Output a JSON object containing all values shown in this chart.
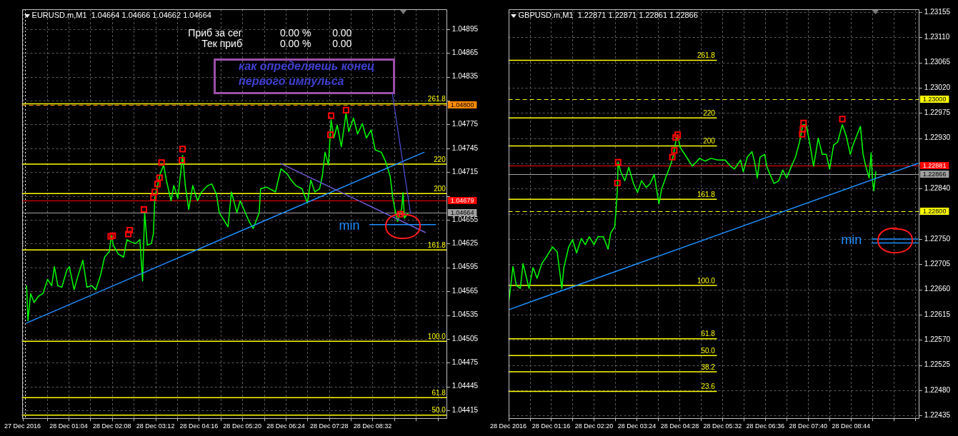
{
  "chart_data": [
    {
      "type": "line",
      "title": "EURUSD.m,M1  1.04664 1.04666 1.04662 1.04664",
      "annotations": [
        "Приб за сег",
        "0.00 %",
        "0.00",
        "Тек приб",
        "0.00 %",
        "0.00",
        "как определяешь конец первого импульса"
      ],
      "xlim": [
        "2016-12-27T23:55",
        "2016-12-28T10:22"
      ],
      "xticks": [
        {
          "value": "2016-12-27T23:56",
          "label": "27 Dec 2016"
        },
        {
          "value": "2016-12-28T00:32",
          "label": null
        },
        {
          "value": "2016-12-28T01:04",
          "label": "28 Dec 01:04"
        },
        {
          "value": "2016-12-28T01:36",
          "label": null
        },
        {
          "value": "2016-12-28T02:08",
          "label": "28 Dec 02:08"
        },
        {
          "value": "2016-12-28T02:40",
          "label": null
        },
        {
          "value": "2016-12-28T03:12",
          "label": "28 Dec 03:12"
        },
        {
          "value": "2016-12-28T03:44",
          "label": null
        },
        {
          "value": "2016-12-28T04:16",
          "label": "28 Dec 04:16"
        },
        {
          "value": "2016-12-28T04:48",
          "label": null
        },
        {
          "value": "2016-12-28T05:20",
          "label": "28 Dec 05:20"
        },
        {
          "value": "2016-12-28T05:52",
          "label": null
        },
        {
          "value": "2016-12-28T06:24",
          "label": "28 Dec 06:24"
        },
        {
          "value": "2016-12-28T06:56",
          "label": null
        },
        {
          "value": "2016-12-28T07:28",
          "label": "28 Dec 07:28"
        },
        {
          "value": "2016-12-28T08:00",
          "label": null
        },
        {
          "value": "2016-12-28T08:32",
          "label": "28 Dec 08:32"
        },
        {
          "value": "2016-12-28T09:04",
          "label": null
        },
        {
          "value": "2016-12-28T09:36",
          "label": null
        },
        {
          "value": "2016-12-28T10:08",
          "label": null
        }
      ],
      "ylim": [
        1.04405,
        1.0492
      ],
      "yticks": [
        1.04415,
        1.04445,
        1.04475,
        1.04505,
        1.04535,
        1.04565,
        1.04595,
        1.04625,
        1.04655,
        {
          "value": 1.04685,
          "label": null
        },
        1.04715,
        1.04745,
        1.04775,
        {
          "value": 1.04805,
          "label": null
        },
        1.04835,
        1.04865,
        1.04895
      ],
      "grid": true,
      "ref_lines": [
        {
          "axis": "x",
          "value": "2016-12-28T00:00",
          "color": "#ffffff",
          "line_style": "dotted"
        },
        {
          "axis": "y",
          "value": 1.048,
          "label": "1.04800",
          "color": "#ff8c00",
          "line_style": "dashed"
        },
        {
          "axis": "y",
          "value": 1.04679,
          "label": "1.04679",
          "color": "#ff0000"
        },
        {
          "axis": "y",
          "value": 1.04664,
          "label": "1.04664",
          "color": "#a0a0a0"
        }
      ],
      "series": [
        {
          "name": "261.8",
          "color": "#ffff00",
          "x": [
            "2016-12-27T23:55",
            "2016-12-28T10:22"
          ],
          "values": [
            1.04801,
            1.04801
          ]
        },
        {
          "name": "220",
          "color": "#ffff00",
          "x": [
            "2016-12-27T23:55",
            "2016-12-28T10:22"
          ],
          "values": [
            1.04725,
            1.04725
          ]
        },
        {
          "name": "200",
          "color": "#ffff00",
          "x": [
            "2016-12-27T23:55",
            "2016-12-28T10:22"
          ],
          "values": [
            1.04688,
            1.04688
          ]
        },
        {
          "name": "161.8",
          "color": "#ffff00",
          "x": [
            "2016-12-27T23:55",
            "2016-12-28T10:22"
          ],
          "values": [
            1.04617,
            1.04617
          ]
        },
        {
          "name": "100.0",
          "color": "#ffff00",
          "x": [
            "2016-12-27T23:55",
            "2016-12-28T10:22"
          ],
          "values": [
            1.04502,
            1.04502
          ]
        },
        {
          "name": "61.8",
          "color": "#ffff00",
          "x": [
            "2016-12-27T23:55",
            "2016-12-28T10:22"
          ],
          "values": [
            1.04431,
            1.04431
          ]
        },
        {
          "name": "50.0",
          "color": "#ffff00",
          "x": [
            "2016-12-27T23:55",
            "2016-12-28T10:22"
          ],
          "values": [
            1.04409,
            1.04409
          ]
        },
        {
          "color": "#00ff00",
          "x": [
            "2016-12-28T00:02",
            "2016-12-28T00:04",
            "2016-12-28T00:08",
            "2016-12-28T00:13",
            "2016-12-28T00:20",
            "2016-12-28T00:26",
            "2016-12-28T00:33",
            "2016-12-28T00:39",
            "2016-12-28T00:43",
            "2016-12-28T00:48",
            "2016-12-28T00:54",
            "2016-12-28T01:01",
            "2016-12-28T01:05",
            "2016-12-28T01:12",
            "2016-12-28T01:18",
            "2016-12-28T01:25",
            "2016-12-28T01:31",
            "2016-12-28T01:38",
            "2016-12-28T01:44",
            "2016-12-28T01:51",
            "2016-12-28T01:57",
            "2016-12-28T02:04",
            "2016-12-28T02:07",
            "2016-12-28T02:10",
            "2016-12-28T02:17",
            "2016-12-28T02:25",
            "2016-12-28T02:30",
            "2016-12-28T02:36",
            "2016-12-28T02:43",
            "2016-12-28T02:49",
            "2016-12-28T02:53",
            "2016-12-28T02:56",
            "2016-12-28T03:00",
            "2016-12-28T03:06",
            "2016-12-28T03:09",
            "2016-12-28T03:11",
            "2016-12-28T03:19",
            "2016-12-28T03:24",
            "2016-12-28T03:28",
            "2016-12-28T03:35",
            "2016-12-28T03:39",
            "2016-12-28T03:45",
            "2016-12-28T03:52",
            "2016-12-28T03:56",
            "2016-12-28T04:01",
            "2016-12-28T04:07",
            "2016-12-28T04:14",
            "2016-12-28T04:20",
            "2016-12-28T04:29",
            "2016-12-28T04:35",
            "2016-12-28T04:42",
            "2016-12-28T04:46",
            "2016-12-28T04:59",
            "2016-12-28T05:04",
            "2016-12-28T05:12",
            "2016-12-28T05:17",
            "2016-12-28T05:30",
            "2016-12-28T05:36",
            "2016-12-28T05:45",
            "2016-12-28T05:47",
            "2016-12-28T05:56",
            "2016-12-28T06:09",
            "2016-12-28T06:13",
            "2016-12-28T06:17",
            "2016-12-28T06:26",
            "2016-12-28T06:32",
            "2016-12-28T06:39",
            "2016-12-28T06:48",
            "2016-12-28T06:56",
            "2016-12-28T07:01",
            "2016-12-28T07:07",
            "2016-12-28T07:14",
            "2016-12-28T07:18",
            "2016-12-28T07:22",
            "2016-12-28T07:27",
            "2016-12-28T07:31",
            "2016-12-28T07:35",
            "2016-12-28T07:40",
            "2016-12-28T07:46",
            "2016-12-28T07:53",
            "2016-12-28T07:57",
            "2016-12-28T08:04",
            "2016-12-28T08:10",
            "2016-12-28T08:17",
            "2016-12-28T08:23",
            "2016-12-28T08:30",
            "2016-12-28T08:36",
            "2016-12-28T08:45",
            "2016-12-28T08:51",
            "2016-12-28T08:58",
            "2016-12-28T09:02",
            "2016-12-28T09:06",
            "2016-12-28T09:09",
            "2016-12-28T09:15",
            "2016-12-28T09:17",
            "2016-12-28T09:19",
            "2016-12-28T09:24"
          ],
          "values": [
            1.04572,
            1.04528,
            1.04562,
            1.04551,
            1.04559,
            1.04562,
            1.0458,
            1.04572,
            1.04596,
            1.04572,
            1.0457,
            1.04591,
            1.04596,
            1.04567,
            1.04585,
            1.04604,
            1.0457,
            1.04572,
            1.04567,
            1.04585,
            1.04608,
            1.04615,
            1.04635,
            1.04623,
            1.04612,
            1.04608,
            1.0463,
            1.04627,
            1.04625,
            1.0463,
            1.04578,
            1.04664,
            1.04623,
            1.04625,
            1.04638,
            1.04682,
            1.04713,
            1.04724,
            1.04705,
            1.04679,
            1.04698,
            1.04682,
            1.04736,
            1.04698,
            1.04668,
            1.04698,
            1.04679,
            1.0469,
            1.04698,
            1.047,
            1.04687,
            1.04664,
            1.04646,
            1.0469,
            1.04664,
            1.04679,
            1.04653,
            1.04644,
            1.04664,
            1.04694,
            1.04696,
            1.0469,
            1.04705,
            1.04719,
            1.04713,
            1.04705,
            1.04698,
            1.04694,
            1.04676,
            1.04705,
            1.0469,
            1.04694,
            1.0471,
            1.0474,
            1.04724,
            1.04781,
            1.04758,
            1.04774,
            1.04747,
            1.04789,
            1.04766,
            1.04783,
            1.04763,
            1.04776,
            1.04758,
            1.04768,
            1.04743,
            1.0474,
            1.04729,
            1.0471,
            1.04682,
            1.04664,
            1.04653,
            1.04669,
            1.04689,
            1.04657,
            1.04663
          ]
        },
        {
          "color": "#1e90ff",
          "x": [
            "2016-12-28T00:02",
            "2016-12-28T09:48"
          ],
          "values": [
            1.04525,
            1.0474
          ]
        },
        {
          "color": "#6a5acd",
          "x": [
            "2016-12-28T06:16",
            "2016-12-28T09:50"
          ],
          "values": [
            1.04726,
            1.04639
          ]
        },
        {
          "name": "min",
          "color": "#1e90ff",
          "x": [
            "2016-12-28T08:28",
            "2016-12-28T10:05"
          ],
          "values": [
            1.04649,
            1.04649
          ]
        },
        {
          "type": "scatter",
          "marker": "square",
          "color": "#ff0000",
          "x": [
            "2016-12-28T02:06",
            "2016-12-28T02:09",
            "2016-12-28T02:32",
            "2016-12-28T02:34",
            "2016-12-28T02:55",
            "2016-12-28T03:09",
            "2016-12-28T03:11",
            "2016-12-28T03:15",
            "2016-12-28T03:18",
            "2016-12-28T03:21",
            "2016-12-28T03:51",
            "2016-12-28T03:52",
            "2016-12-28T07:30",
            "2016-12-28T07:31",
            "2016-12-28T07:53",
            "2016-12-28T09:13"
          ],
          "values": [
            1.04634,
            1.04635,
            1.04637,
            1.04642,
            1.04668,
            1.04683,
            1.0469,
            1.047,
            1.04708,
            1.04727,
            1.0473,
            1.04744,
            1.04762,
            1.04786,
            1.04793,
            1.04662
          ]
        }
      ]
    },
    {
      "type": "line",
      "title": "GBPUSD.m,M1  1.22871 1.22871 1.22861 1.22866",
      "xlim": [
        "2016-12-28T00:12",
        "2016-12-28T10:26"
      ],
      "xticks": [
        {
          "value": "2016-12-28T00:12",
          "label": "28 Dec 2016"
        },
        {
          "value": "2016-12-28T00:44",
          "label": null
        },
        {
          "value": "2016-12-28T01:16",
          "label": "28 Dec 01:16"
        },
        {
          "value": "2016-12-28T01:48",
          "label": null
        },
        {
          "value": "2016-12-28T02:20",
          "label": "28 Dec 02:20"
        },
        {
          "value": "2016-12-28T02:52",
          "label": null
        },
        {
          "value": "2016-12-28T03:24",
          "label": "28 Dec 03:24"
        },
        {
          "value": "2016-12-28T03:56",
          "label": null
        },
        {
          "value": "2016-12-28T04:28",
          "label": "28 Dec 04:28"
        },
        {
          "value": "2016-12-28T05:00",
          "label": null
        },
        {
          "value": "2016-12-28T05:32",
          "label": "28 Dec 05:32"
        },
        {
          "value": "2016-12-28T06:04",
          "label": null
        },
        {
          "value": "2016-12-28T06:36",
          "label": "28 Dec 06:36"
        },
        {
          "value": "2016-12-28T07:08",
          "label": null
        },
        {
          "value": "2016-12-28T07:40",
          "label": "28 Dec 07:40"
        },
        {
          "value": "2016-12-28T08:12",
          "label": null
        },
        {
          "value": "2016-12-28T08:44",
          "label": "28 Dec 08:44"
        },
        {
          "value": "2016-12-28T09:16",
          "label": null
        },
        {
          "value": "2016-12-28T09:48",
          "label": null
        },
        {
          "value": "2016-12-28T10:20",
          "label": null
        }
      ],
      "ylim": [
        1.2243,
        1.2316
      ],
      "yticks": [
        1.22435,
        {
          "value": 1.2248,
          "label": "1.22480"
        },
        1.22525,
        {
          "value": 1.2257,
          "label": "1.22570"
        },
        1.22615,
        {
          "value": 1.2266,
          "label": "1.22660"
        },
        1.22705,
        {
          "value": 1.2275,
          "label": "1.22750"
        },
        {
          "value": 1.22795,
          "label": null
        },
        {
          "value": 1.2284,
          "label": "1.22840"
        },
        {
          "value": 1.22885,
          "label": null
        },
        {
          "value": 1.2293,
          "label": "1.22930"
        },
        1.22975,
        {
          "value": 1.2302,
          "label": "1.23020"
        },
        1.23065,
        {
          "value": 1.2311,
          "label": "1.23110"
        },
        1.23155
      ],
      "grid": true,
      "ref_lines": [
        {
          "axis": "y",
          "value": 1.23,
          "label": "1.23000",
          "color": "#ffff00",
          "line_style": "dashed"
        },
        {
          "axis": "y",
          "value": 1.22881,
          "label": "1.22881",
          "color": "#ff0000"
        },
        {
          "axis": "y",
          "value": 1.22866,
          "label": "1.22866",
          "color": "#a0a0a0"
        },
        {
          "axis": "y",
          "value": 1.228,
          "label": "1.22800",
          "color": "#ffff00",
          "line_style": "dashed"
        }
      ],
      "series": [
        {
          "name": "261.8",
          "color": "#ffff00",
          "x": [
            "2016-12-28T00:12",
            "2016-12-28T05:23"
          ],
          "values": [
            1.23069,
            1.23069
          ]
        },
        {
          "name": "220",
          "color": "#ffff00",
          "x": [
            "2016-12-28T00:12",
            "2016-12-28T05:23"
          ],
          "values": [
            1.22966,
            1.22966
          ]
        },
        {
          "name": "200",
          "color": "#ffff00",
          "x": [
            "2016-12-28T00:12",
            "2016-12-28T05:23"
          ],
          "values": [
            1.22916,
            1.22916
          ]
        },
        {
          "name": "161.8",
          "color": "#ffff00",
          "x": [
            "2016-12-28T00:12",
            "2016-12-28T05:23"
          ],
          "values": [
            1.22821,
            1.22821
          ]
        },
        {
          "name": "100.0",
          "color": "#ffff00",
          "x": [
            "2016-12-28T00:12",
            "2016-12-28T05:23"
          ],
          "values": [
            1.22667,
            1.22667
          ]
        },
        {
          "name": "61.8",
          "color": "#ffff00",
          "x": [
            "2016-12-28T00:12",
            "2016-12-28T05:23"
          ],
          "values": [
            1.22572,
            1.22572
          ]
        },
        {
          "name": "50.0",
          "color": "#ffff00",
          "x": [
            "2016-12-28T00:12",
            "2016-12-28T05:23"
          ],
          "values": [
            1.22542,
            1.22542
          ]
        },
        {
          "name": "38.2",
          "color": "#ffff00",
          "x": [
            "2016-12-28T00:12",
            "2016-12-28T05:23"
          ],
          "values": [
            1.22513,
            1.22513
          ]
        },
        {
          "name": "23.6",
          "color": "#ffff00",
          "x": [
            "2016-12-28T00:12",
            "2016-12-28T05:23"
          ],
          "values": [
            1.22478,
            1.22478
          ]
        },
        {
          "color": "#00ff00",
          "x": [
            "2016-12-28T00:13",
            "2016-12-28T00:19",
            "2016-12-28T00:24",
            "2016-12-28T00:30",
            "2016-12-28T00:34",
            "2016-12-28T00:43",
            "2016-12-28T00:49",
            "2016-12-28T00:55",
            "2016-12-28T01:02",
            "2016-12-28T01:10",
            "2016-12-28T01:18",
            "2016-12-28T01:25",
            "2016-12-28T01:29",
            "2016-12-28T01:32",
            "2016-12-28T01:35",
            "2016-12-28T01:42",
            "2016-12-28T01:48",
            "2016-12-28T01:54",
            "2016-12-28T02:01",
            "2016-12-28T02:07",
            "2016-12-28T02:13",
            "2016-12-28T02:20",
            "2016-12-28T02:26",
            "2016-12-28T02:34",
            "2016-12-28T02:41",
            "2016-12-28T02:45",
            "2016-12-28T02:51",
            "2016-12-28T02:53",
            "2016-12-28T02:55",
            "2016-12-28T02:56",
            "2016-12-28T03:00",
            "2016-12-28T03:06",
            "2016-12-28T03:12",
            "2016-12-28T03:19",
            "2016-12-28T03:25",
            "2016-12-28T03:31",
            "2016-12-28T03:38",
            "2016-12-28T03:44",
            "2016-12-28T03:50",
            "2016-12-28T03:57",
            "2016-12-28T04:01",
            "2016-12-28T04:07",
            "2016-12-28T04:13",
            "2016-12-28T04:18",
            "2016-12-28T04:22",
            "2016-12-28T04:25",
            "2016-12-28T04:29",
            "2016-12-28T04:34",
            "2016-12-28T04:41",
            "2016-12-28T04:47",
            "2016-12-28T04:58",
            "2016-12-28T05:06",
            "2016-12-28T05:15",
            "2016-12-28T05:25",
            "2016-12-28T05:36",
            "2016-12-28T05:44",
            "2016-12-28T05:50",
            "2016-12-28T05:59",
            "2016-12-28T06:03",
            "2016-12-28T06:09",
            "2016-12-28T06:16",
            "2016-12-28T06:20",
            "2016-12-28T06:24",
            "2016-12-28T06:28",
            "2016-12-28T06:35",
            "2016-12-28T06:38",
            "2016-12-28T06:43",
            "2016-12-28T06:49",
            "2016-12-28T06:56",
            "2016-12-28T07:02",
            "2016-12-28T07:08",
            "2016-12-28T07:15",
            "2016-12-28T07:21",
            "2016-12-28T07:27",
            "2016-12-28T07:32",
            "2016-12-28T07:37",
            "2016-12-28T07:42",
            "2016-12-28T07:48",
            "2016-12-28T07:55",
            "2016-12-28T08:01",
            "2016-12-28T08:07",
            "2016-12-28T08:12",
            "2016-12-28T08:18",
            "2016-12-28T08:24",
            "2016-12-28T08:31",
            "2016-12-28T08:37",
            "2016-12-28T08:43",
            "2016-12-28T08:47",
            "2016-12-28T08:54",
            "2016-12-28T08:58",
            "2016-12-28T09:02",
            "2016-12-28T09:06",
            "2016-12-28T09:11",
            "2016-12-28T09:14",
            "2016-12-28T09:16",
            "2016-12-28T09:18",
            "2016-12-28T09:21"
          ],
          "values": [
            1.2264,
            1.22701,
            1.22667,
            1.22662,
            1.22706,
            1.22662,
            1.22699,
            1.2268,
            1.22706,
            1.2272,
            1.22736,
            1.22727,
            1.2269,
            1.22662,
            1.22699,
            1.22735,
            1.22749,
            1.22725,
            1.22751,
            1.2274,
            1.22754,
            1.2274,
            1.22754,
            1.22754,
            1.22732,
            1.22761,
            1.22772,
            1.22803,
            1.22839,
            1.22887,
            1.2287,
            1.22854,
            1.22878,
            1.22849,
            1.22833,
            1.22854,
            1.22842,
            1.22849,
            1.22865,
            1.22813,
            1.22839,
            1.22859,
            1.22878,
            1.22896,
            1.22923,
            1.22934,
            1.22913,
            1.22904,
            1.22891,
            1.2288,
            1.22894,
            1.22889,
            1.22894,
            1.22891,
            1.22891,
            1.2288,
            1.22875,
            1.22891,
            1.2287,
            1.22896,
            1.22906,
            1.22887,
            1.22859,
            1.22896,
            1.22901,
            1.2288,
            1.22865,
            1.22849,
            1.22854,
            1.22873,
            1.22859,
            1.2288,
            1.22896,
            1.22923,
            1.22954,
            1.22954,
            1.22923,
            1.2288,
            1.2293,
            1.22901,
            1.22901,
            1.22875,
            1.22918,
            1.22923,
            1.22954,
            1.22933,
            1.22901,
            1.22918,
            1.22939,
            1.22951,
            1.22901,
            1.2288,
            1.22859,
            1.22904,
            1.22854,
            1.22836,
            1.2287
          ]
        },
        {
          "color": "#1e90ff",
          "x": [
            "2016-12-28T00:13",
            "2016-12-28T10:24"
          ],
          "values": [
            1.22624,
            1.22885
          ]
        },
        {
          "name": "min",
          "color": "#1e90ff",
          "x": [
            "2016-12-28T09:15",
            "2016-12-28T10:24"
          ],
          "values": [
            1.2275,
            1.2275
          ]
        },
        {
          "color": "#1e90ff",
          "x": [
            "2016-12-28T09:15",
            "2016-12-28T10:24"
          ],
          "values": [
            1.22743,
            1.22743
          ]
        },
        {
          "type": "scatter",
          "marker": "square",
          "color": "#ff0000",
          "x": [
            "2016-12-28T02:55",
            "2016-12-28T02:56",
            "2016-12-28T04:17",
            "2016-12-28T04:20",
            "2016-12-28T04:22",
            "2016-12-28T04:25",
            "2016-12-28T07:31",
            "2016-12-28T07:32",
            "2016-12-28T07:33",
            "2016-12-28T08:31"
          ],
          "values": [
            1.2285,
            1.22887,
            1.22896,
            1.22908,
            1.22931,
            1.22936,
            1.22937,
            1.22946,
            1.22957,
            1.22964
          ]
        }
      ]
    }
  ]
}
